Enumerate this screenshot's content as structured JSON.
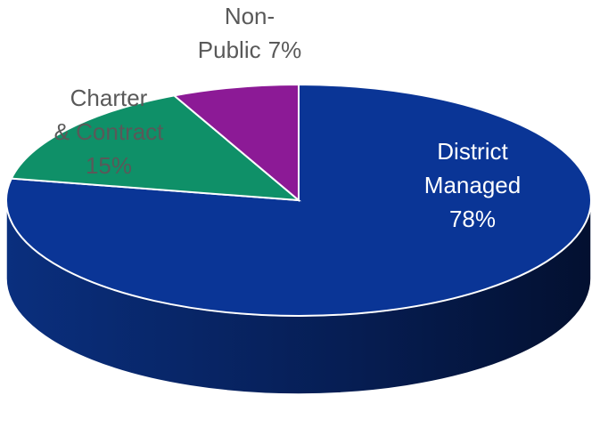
{
  "chart_data": {
    "type": "pie",
    "categories": [
      "District Managed",
      "Charter & Contract",
      "Non-Public"
    ],
    "values": [
      78,
      15,
      7
    ],
    "value_labels": [
      "78%",
      "15%",
      "7%"
    ],
    "colors": [
      "#0a3596",
      "#0f9068",
      "#8c1a96"
    ]
  }
}
